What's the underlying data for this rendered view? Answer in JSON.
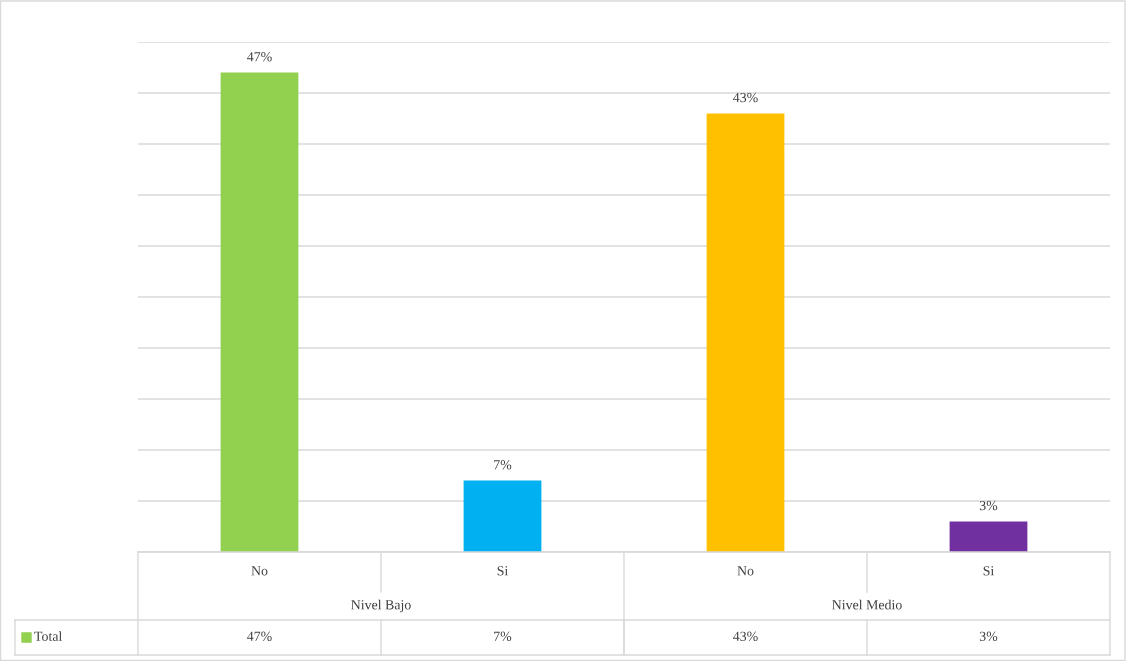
{
  "chart_data": {
    "type": "bar",
    "categories": [
      "No",
      "Si",
      "No",
      "Si"
    ],
    "series": [
      {
        "name": "Total",
        "colors": [
          "#92d050",
          "#00b0f0",
          "#ffc000",
          "#7030a0"
        ],
        "values": [
          47,
          7,
          43,
          3
        ],
        "value_labels": [
          "47%",
          "7%",
          "43%",
          "3%"
        ]
      }
    ],
    "annotations": [
      "Nivel Bajo",
      "Nivel Medio"
    ],
    "ylim": [
      0,
      50
    ],
    "yticks": [
      {
        "value": 0,
        "label": null
      },
      {
        "value": 5,
        "label": null
      },
      {
        "value": 10,
        "label": null
      },
      {
        "value": 15,
        "label": null
      },
      {
        "value": 20,
        "label": null
      },
      {
        "value": 25,
        "label": null
      },
      {
        "value": 30,
        "label": null
      },
      {
        "value": 35,
        "label": null
      },
      {
        "value": 40,
        "label": null
      },
      {
        "value": 45,
        "label": null
      },
      {
        "value": 50,
        "label": null
      }
    ],
    "grid": "y",
    "legend": "bottom"
  }
}
